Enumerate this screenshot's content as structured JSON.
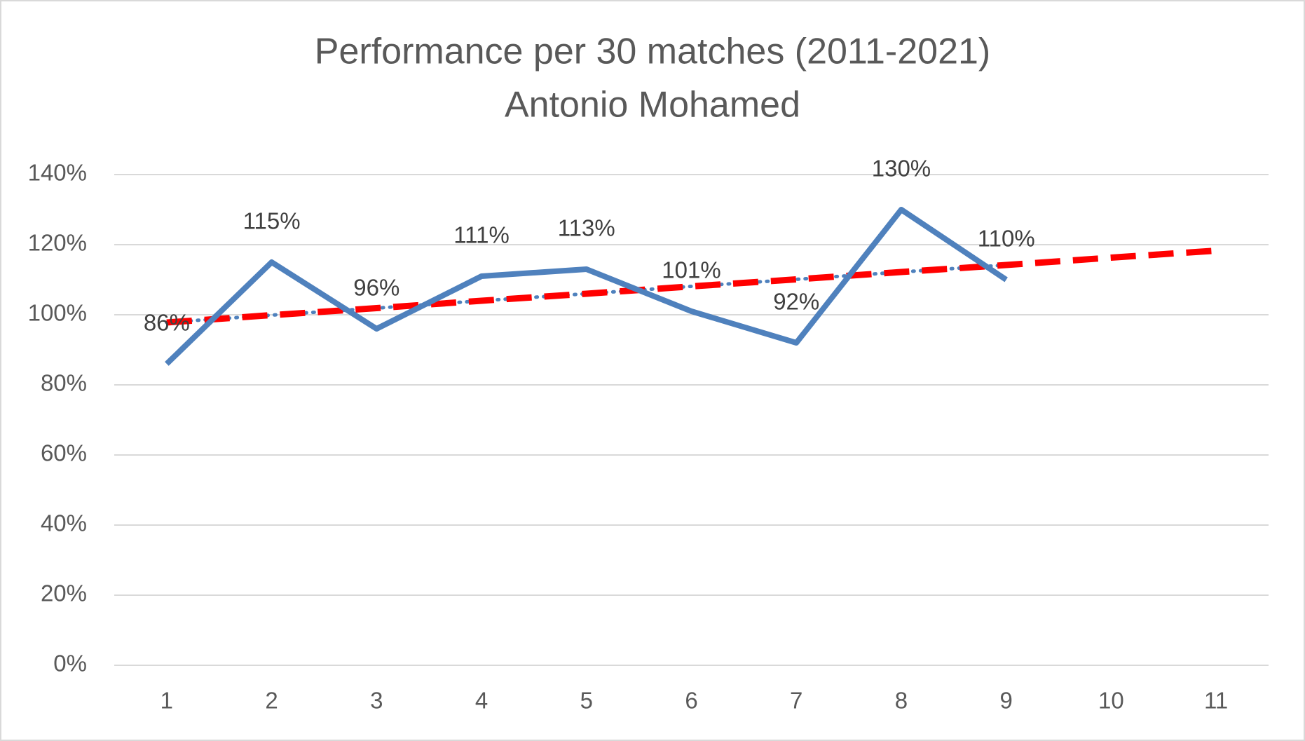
{
  "chart_data": {
    "type": "line",
    "title": "Performance per 30 matches (2011-2021)",
    "subtitle": "Antonio Mohamed",
    "categories": [
      "1",
      "2",
      "3",
      "4",
      "5",
      "6",
      "7",
      "8",
      "9",
      "10",
      "11"
    ],
    "series": [
      {
        "color": "#4f81bd",
        "style": "solid",
        "values": [
          86,
          115,
          96,
          111,
          113,
          101,
          92,
          130,
          110,
          null,
          null
        ],
        "value_labels": [
          "86%",
          "115%",
          "96%",
          "111%",
          "113%",
          "101%",
          "92%",
          "130%",
          "110%",
          null,
          null
        ]
      },
      {
        "color": "#4f81bd",
        "style": "dotted",
        "values": [
          97.8,
          99.9,
          101.9,
          104.0,
          106.0,
          108.1,
          110.1,
          112.2,
          114.2,
          null,
          null
        ]
      },
      {
        "color": "#ff0000",
        "style": "dashed",
        "values": [
          97.8,
          99.9,
          101.9,
          104.0,
          106.0,
          108.1,
          110.1,
          112.2,
          114.2,
          116.3,
          118.3
        ]
      }
    ],
    "ylim": [
      0,
      140
    ],
    "yticks": [
      {
        "value": 0,
        "label": "0%"
      },
      {
        "value": 20,
        "label": "20%"
      },
      {
        "value": 40,
        "label": "40%"
      },
      {
        "value": 60,
        "label": "60%"
      },
      {
        "value": 80,
        "label": "80%"
      },
      {
        "value": 100,
        "label": "100%"
      },
      {
        "value": 120,
        "label": "120%"
      },
      {
        "value": 140,
        "label": "140%"
      }
    ],
    "grid": true
  }
}
